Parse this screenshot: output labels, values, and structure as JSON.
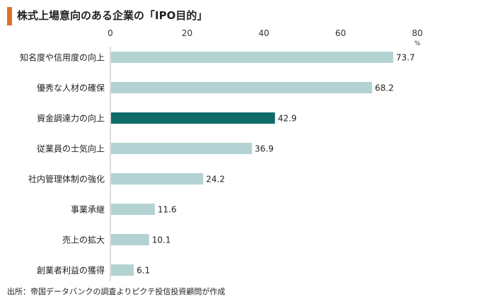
{
  "header": {
    "title": "株式上場意向のある企業の「IPO目的」"
  },
  "footer": {
    "source": "出所：帝国データバンクの調査よりピクテ投信投資顧問が作成"
  },
  "colors": {
    "accent": "#e06e2a",
    "bar": "#b3d2d2",
    "highlight": "#0e6b68",
    "axis": "#bbbbbb"
  },
  "chart_data": {
    "type": "bar",
    "orientation": "horizontal",
    "categories": [
      "知名度や信用度の向上",
      "優秀な人材の確保",
      "資金調達力の向上",
      "従業員の士気向上",
      "社内管理体制の強化",
      "事業承継",
      "売上の拡大",
      "創業者利益の獲得"
    ],
    "values": [
      73.7,
      68.2,
      42.9,
      36.9,
      24.2,
      11.6,
      10.1,
      6.1
    ],
    "value_labels": [
      "73.7",
      "68.2",
      "42.9",
      "36.9",
      "24.2",
      "11.6",
      "10.1",
      "6.1"
    ],
    "highlight_index": 2,
    "xlim": [
      0,
      80
    ],
    "xticks": [
      "0",
      "20",
      "40",
      "60",
      "80"
    ],
    "unit": "%",
    "axis_position": "top",
    "grid": false
  }
}
